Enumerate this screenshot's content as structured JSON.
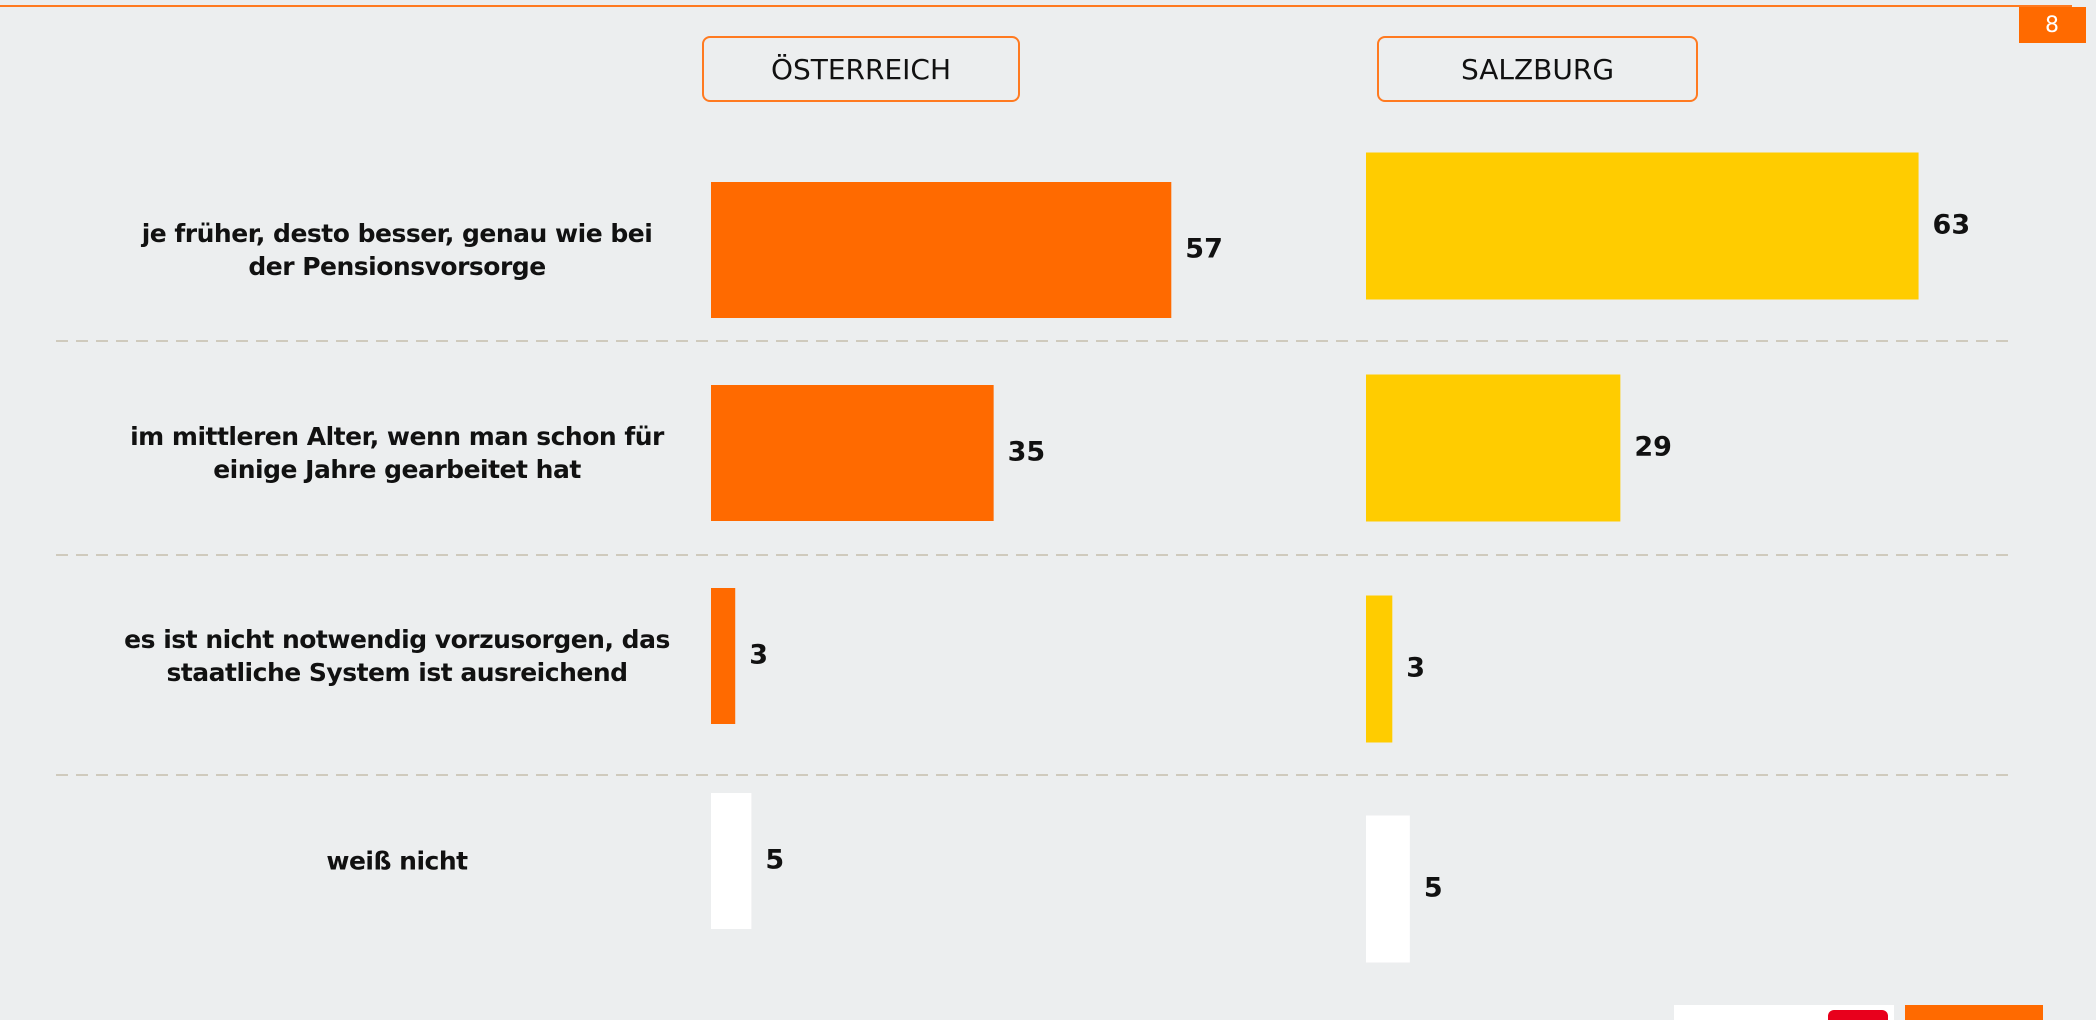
{
  "page_number": "8",
  "chart_data": [
    {
      "type": "bar",
      "title": "ÖSTERREICH",
      "categories": [
        "je früher, desto besser, genau wie bei der Pensionsvorsorge",
        "im mittleren Alter, wenn man schon für einige Jahre gearbeitet hat",
        "es ist nicht notwendig vorzusorgen, das staatliche System ist ausreichend",
        "weiß nicht"
      ],
      "values": [
        57,
        35,
        3,
        5
      ],
      "colors": [
        "#ff6a00",
        "#ff6a00",
        "#ff6a00",
        "#ffffff"
      ]
    },
    {
      "type": "bar",
      "title": "SALZBURG",
      "values": [
        63,
        29,
        3,
        5
      ],
      "colors": [
        "#ffcc00",
        "#ffcc00",
        "#ffcc00",
        "#ffffff"
      ]
    }
  ]
}
